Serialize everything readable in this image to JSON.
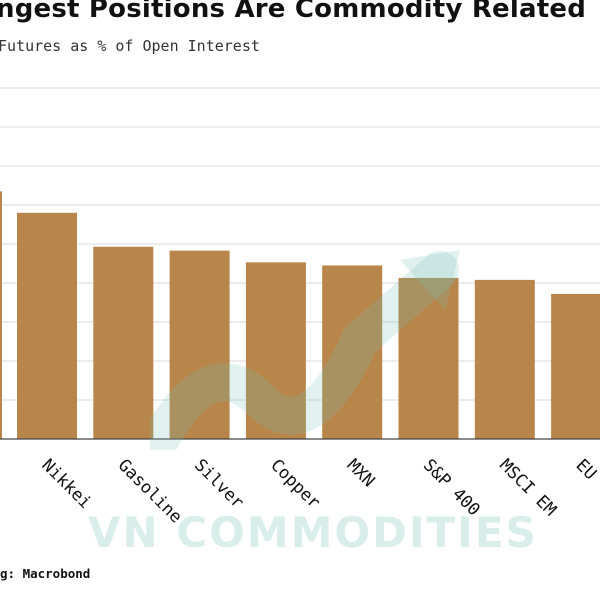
{
  "header": {
    "title": "ngest Positions Are Commodity Related",
    "subtitle": "Futures as % of Open Interest"
  },
  "footer": {
    "source": "g: Macrobond"
  },
  "watermark": {
    "text": "VN COMMODITIES"
  },
  "colors": {
    "bar": "#b8864b",
    "grid": "#d9d9d9",
    "watermark": "#78beb4"
  },
  "chart_data": {
    "type": "bar",
    "title": "ngest Positions Are Commodity Related",
    "subtitle": "Futures as % of Open Interest",
    "categories": [
      "Nikkei",
      "Gasoline",
      "Silver",
      "Copper",
      "MXN",
      "S&P 400",
      "MSCI EM",
      "EU"
    ],
    "values": [
      58,
      49.3,
      48.3,
      45.3,
      44.5,
      41.3,
      40.8,
      37.2
    ],
    "partial_bar_at_left_edge": 63.5,
    "ylim": [
      0,
      90
    ],
    "grid": true,
    "y_tick_labels_visible": false,
    "xlabel": "",
    "ylabel": ""
  }
}
